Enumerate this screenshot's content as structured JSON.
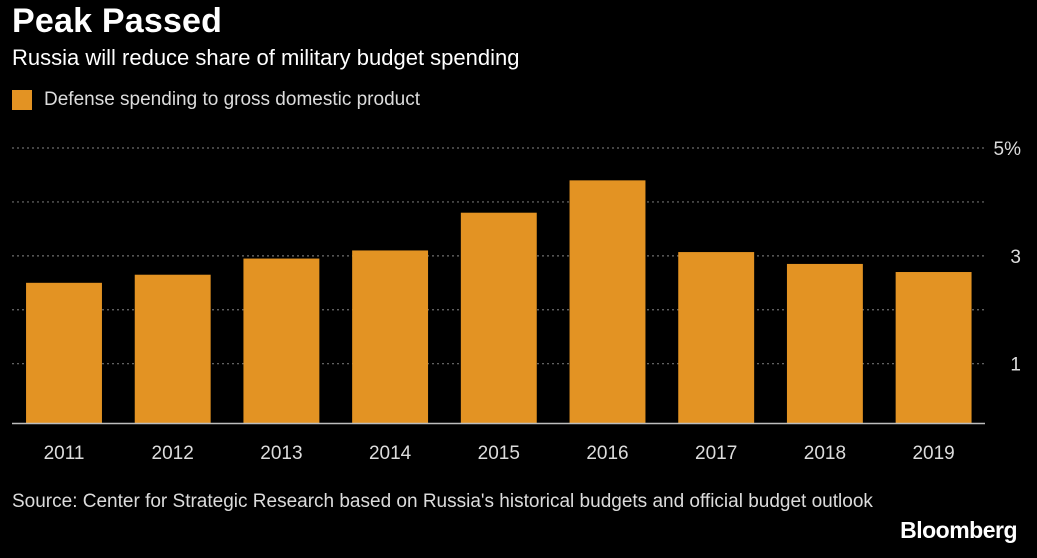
{
  "header": {
    "title": "Peak Passed",
    "subtitle": "Russia will reduce share of military budget spending"
  },
  "legend": {
    "label": "Defense spending to gross domestic product",
    "swatch_icon": "square-swatch-icon"
  },
  "colors": {
    "bar": "#e39323",
    "background": "#000000",
    "grid": "#6e6e6e"
  },
  "footer": {
    "source": "Source: Center for Strategic Research based on Russia's historical budgets and official budget outlook",
    "brand": "Bloomberg"
  },
  "chart_data": {
    "type": "bar",
    "categories": [
      "2011",
      "2012",
      "2013",
      "2014",
      "2015",
      "2016",
      "2017",
      "2018",
      "2019"
    ],
    "series": [
      {
        "name": "Defense spending to gross domestic product",
        "values": [
          2.5,
          2.65,
          2.95,
          3.1,
          3.8,
          4.4,
          3.07,
          2.85,
          2.7
        ]
      }
    ],
    "y_ticks": [
      {
        "value": 5,
        "label": "5%"
      },
      {
        "value": 3,
        "label": "3"
      },
      {
        "value": 1,
        "label": "1"
      }
    ],
    "gridlines": [
      1,
      2,
      3,
      4,
      5
    ],
    "ylim": [
      -0.1,
      5
    ],
    "y_axis_position": "right",
    "grid": true,
    "legend_position": "top-left"
  }
}
